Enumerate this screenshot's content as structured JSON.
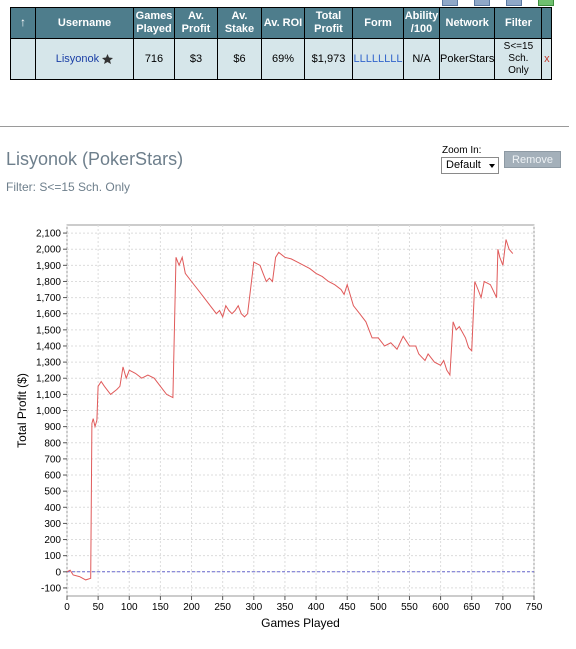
{
  "table": {
    "headers": {
      "sort_icon": "↑",
      "username": "Username",
      "games_played": "Games Played",
      "av_profit": "Av. Profit",
      "av_stake": "Av. Stake",
      "av_roi": "Av. ROI",
      "total_profit": "Total Profit",
      "form": "Form",
      "ability": "Ability /100",
      "network": "Network",
      "filter": "Filter"
    },
    "row": {
      "username": "Lisyonok",
      "games_played": "716",
      "av_profit": "$3",
      "av_stake": "$6",
      "av_roi": "69%",
      "total_profit": "$1,973",
      "form": "LLLLLLLL",
      "ability": "N/A",
      "network": "PokerStars",
      "filter": "S<=15 Sch. Only",
      "remove": "x"
    }
  },
  "player_title": "Lisyonok (PokerStars)",
  "filter_text": "Filter: S<=15 Sch. Only",
  "zoom": {
    "label": "Zoom In:",
    "value": "Default"
  },
  "remove_button": "Remove",
  "colors": {
    "header_bg": "#4e7d8c",
    "row_bg": "#d6e6ea",
    "line": "#e05a5a",
    "zero_line": "#6a6ad0"
  },
  "chart_data": {
    "type": "line",
    "xlabel": "Games Played",
    "ylabel": "Total Profit ($)",
    "xlim": [
      0,
      750
    ],
    "ylim": [
      -150,
      2150
    ],
    "xticks": [
      0,
      50,
      100,
      150,
      200,
      250,
      300,
      350,
      400,
      450,
      500,
      550,
      600,
      650,
      700,
      750
    ],
    "yticks": [
      -100,
      0,
      100,
      200,
      300,
      400,
      500,
      600,
      700,
      800,
      900,
      1000,
      1100,
      1200,
      1300,
      1400,
      1500,
      1600,
      1700,
      1800,
      1900,
      2000,
      2100
    ],
    "grid": true,
    "series": [
      {
        "x": [
          0,
          5,
          10,
          20,
          30,
          38,
          40,
          42,
          45,
          48,
          50,
          55,
          60,
          70,
          80,
          85,
          90,
          95,
          100,
          110,
          120,
          130,
          140,
          150,
          160,
          170,
          175,
          178,
          180,
          185,
          190,
          200,
          210,
          220,
          230,
          240,
          245,
          250,
          255,
          260,
          265,
          270,
          275,
          280,
          285,
          290,
          300,
          310,
          315,
          320,
          325,
          330,
          335,
          340,
          350,
          360,
          370,
          380,
          390,
          400,
          410,
          420,
          430,
          440,
          445,
          450,
          460,
          470,
          480,
          490,
          500,
          510,
          520,
          530,
          540,
          550,
          560,
          565,
          570,
          575,
          580,
          590,
          600,
          605,
          610,
          615,
          620,
          625,
          630,
          640,
          645,
          650,
          655,
          660,
          665,
          670,
          680,
          690,
          692,
          695,
          700,
          705,
          710,
          716
        ],
        "y": [
          0,
          10,
          -20,
          -30,
          -50,
          -40,
          920,
          950,
          900,
          940,
          1150,
          1180,
          1150,
          1100,
          1130,
          1150,
          1270,
          1200,
          1250,
          1230,
          1200,
          1220,
          1200,
          1150,
          1100,
          1080,
          1950,
          1920,
          1900,
          1950,
          1850,
          1800,
          1750,
          1700,
          1650,
          1600,
          1620,
          1580,
          1650,
          1620,
          1600,
          1620,
          1650,
          1600,
          1580,
          1600,
          1920,
          1900,
          1850,
          1800,
          1820,
          1800,
          1950,
          1980,
          1950,
          1940,
          1920,
          1900,
          1880,
          1850,
          1830,
          1800,
          1780,
          1750,
          1720,
          1780,
          1650,
          1600,
          1550,
          1450,
          1450,
          1400,
          1420,
          1380,
          1460,
          1400,
          1400,
          1350,
          1330,
          1310,
          1350,
          1300,
          1280,
          1310,
          1250,
          1220,
          1550,
          1500,
          1520,
          1450,
          1390,
          1370,
          1800,
          1750,
          1700,
          1800,
          1780,
          1700,
          2000,
          1950,
          1900,
          2060,
          2000,
          1973
        ]
      }
    ]
  }
}
